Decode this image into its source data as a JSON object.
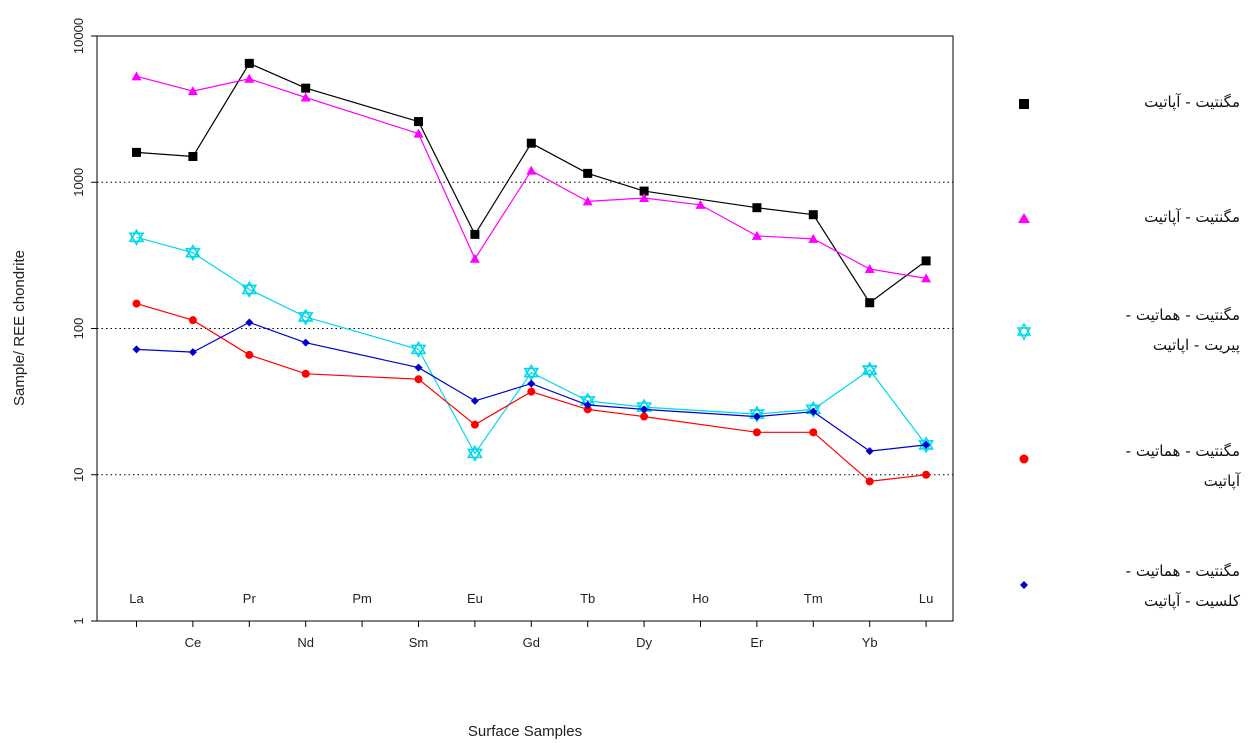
{
  "chart_data": {
    "type": "line",
    "ylabel": "Sample/ REE chondrite",
    "xlabel": "Surface Samples",
    "y_scale": "log",
    "ylim": [
      1,
      10000
    ],
    "y_ticks": [
      "1",
      "10",
      "100",
      "1000",
      "10000"
    ],
    "categories": [
      "La",
      "Ce",
      "Pr",
      "Nd",
      "Pm",
      "Sm",
      "Eu",
      "Gd",
      "Tb",
      "Dy",
      "Ho",
      "Er",
      "Tm",
      "Yb",
      "Lu"
    ],
    "grid": "horizontal dotted at 10, 100, 1000",
    "legend_position": "right",
    "series": [
      {
        "name": "مگنتیت - آپاتیت",
        "color": "#000000",
        "marker": "square",
        "values": [
          1600,
          1500,
          6500,
          4400,
          null,
          2600,
          440,
          1850,
          1150,
          870,
          null,
          670,
          600,
          150,
          290
        ]
      },
      {
        "name": "مگنتیت - آپاتیت",
        "color": "#ff00ff",
        "marker": "triangle",
        "values": [
          5300,
          4200,
          5100,
          3800,
          null,
          2150,
          300,
          1200,
          740,
          780,
          700,
          430,
          410,
          255,
          220
        ]
      },
      {
        "name": "مگنتیت - هماتیت - پیریت - اپاتیت",
        "color": "#00d8e8",
        "marker": "star",
        "values": [
          420,
          330,
          185,
          120,
          null,
          72,
          14,
          50,
          32,
          29,
          null,
          26,
          28,
          52,
          16
        ]
      },
      {
        "name": "مگنتیت - هماتیت - آپاتیت",
        "color": "#ff0000",
        "marker": "circle",
        "values": [
          148,
          114,
          66,
          49,
          null,
          45,
          22,
          37,
          28,
          25,
          null,
          19.5,
          19.5,
          9,
          10
        ]
      },
      {
        "name": "مگنتیت - هماتیت - کلسیت - آپاتیت",
        "color": "#0000cc",
        "marker": "diamond",
        "values": [
          72,
          69,
          110,
          80,
          null,
          54,
          32,
          42,
          30,
          28,
          null,
          25,
          27,
          14.5,
          16
        ]
      }
    ]
  },
  "legend": {
    "items": [
      {
        "label": "مگنتیت - آپاتیت"
      },
      {
        "label": "مگنتیت - آپاتیت"
      },
      {
        "label": "مگنتیت - هماتیت -\nپیریت - اپاتیت"
      },
      {
        "label": "مگنتیت - هماتیت -\nآپاتیت"
      },
      {
        "label": "مگنتیت - هماتیت -\nکلسیت - آپاتیت"
      }
    ]
  }
}
